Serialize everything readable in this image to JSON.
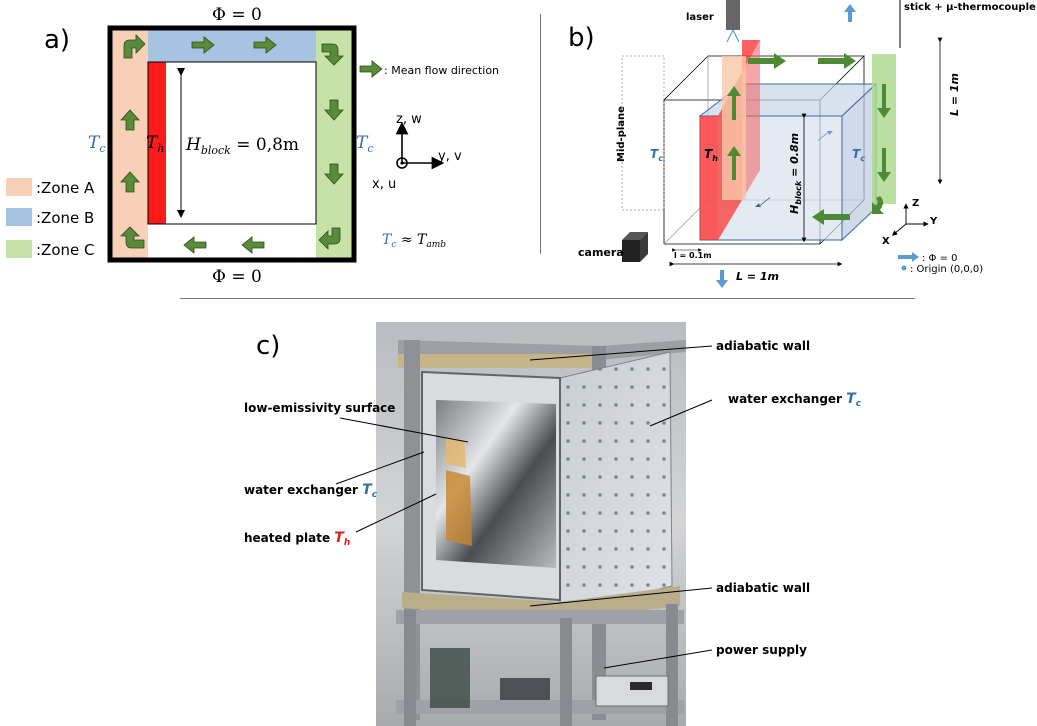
{
  "colors": {
    "zone_a": "#f8d0b8",
    "zone_b": "#a7c3e2",
    "zone_c": "#c6e2a6",
    "heated": "#ff1a1a",
    "arrow_green": "#5a8b3a",
    "cold_label": "#2f6fb0",
    "hot_label": "#e02020",
    "flux_arrow": "#5b9bd5"
  },
  "panel_a": {
    "label": "a)",
    "phi_top": "Φ = 0",
    "phi_bottom": "Φ = 0",
    "tc_left": "T",
    "tc_left_sub": "c",
    "tc_right": "T",
    "tc_right_sub": "c",
    "th": "T",
    "th_sub": "h",
    "h_block_main": "H",
    "h_block_sub": "block",
    "h_block_value": " = 0,8m",
    "mean_flow": ": Mean flow direction",
    "axis_z": "z, w",
    "axis_y": "y, v",
    "axis_x": "x, u",
    "tc_relation_main": "T",
    "tc_relation_sub": "c",
    "tc_relation_mid": " ≈ T",
    "tc_relation_sub2": "amb",
    "legend": [
      {
        "label": ":Zone A"
      },
      {
        "label": ":Zone B"
      },
      {
        "label": ":Zone C"
      }
    ]
  },
  "panel_b": {
    "label": "b)",
    "laser": "laser",
    "stick": "stick + µ-thermocouple",
    "mid_plane": "Mid-plane",
    "tc_left": "T",
    "tc_left_sub": "c",
    "th": "T",
    "th_sub": "h",
    "tc_right": "T",
    "tc_right_sub": "c",
    "h_block": "H",
    "h_block_sub": "block",
    "h_block_value": " = 0.8m",
    "l_right": "L = 1m",
    "l_bottom": "L = 1m",
    "small_l": "l = 0.1m",
    "camera": "camera",
    "axis_z": "Z",
    "axis_y": "Y",
    "axis_x": "X",
    "legend_phi": ": Φ = 0",
    "legend_origin": ": Origin (0,0,0)"
  },
  "panel_c": {
    "label": "c)",
    "annotations": [
      {
        "text": "adiabatic wall"
      },
      {
        "text": "low-emissivity surface"
      },
      {
        "text": "water exchanger ",
        "sym": "T",
        "sub": "c"
      },
      {
        "text": "water exchanger ",
        "sym": "T",
        "sub": "c"
      },
      {
        "text": "heated plate ",
        "sym": "T",
        "sub": "h"
      },
      {
        "text": "adiabatic wall"
      },
      {
        "text": "power supply"
      }
    ]
  }
}
